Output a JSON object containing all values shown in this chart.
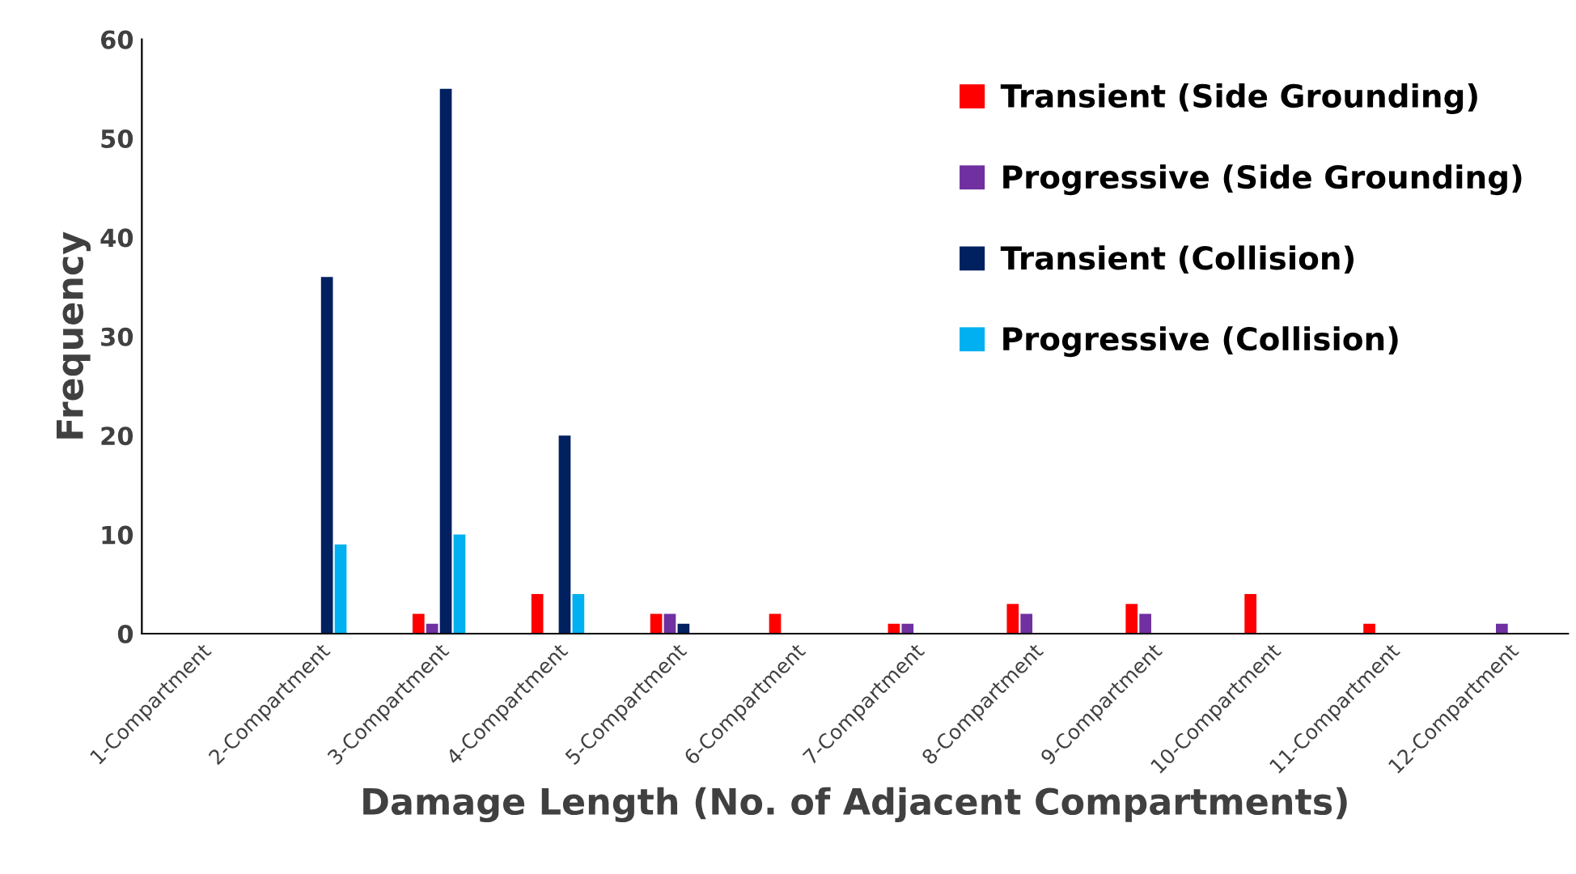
{
  "chart_data": {
    "type": "bar",
    "xlabel": "Damage Length (No. of Adjacent Compartments)",
    "ylabel": "Frequency",
    "categories": [
      "1-Compartment",
      "2-Compartment",
      "3-Compartment",
      "4-Compartment",
      "5-Compartment",
      "6-Compartment",
      "7-Compartment",
      "8-Compartment",
      "9-Compartment",
      "10-Compartment",
      "11-Compartment",
      "12-Compartment"
    ],
    "series": [
      {
        "name": "Transient (Side Grounding)",
        "color": "#ff0000",
        "values": [
          0,
          0,
          2,
          4,
          2,
          2,
          1,
          3,
          3,
          4,
          1,
          0
        ]
      },
      {
        "name": "Progressive (Side Grounding)",
        "color": "#7030a0",
        "values": [
          0,
          0,
          1,
          0,
          2,
          0,
          1,
          2,
          2,
          0,
          0,
          1
        ]
      },
      {
        "name": "Transient (Collision)",
        "color": "#002060",
        "values": [
          0,
          36,
          55,
          20,
          1,
          0,
          0,
          0,
          0,
          0,
          0,
          0
        ]
      },
      {
        "name": "Progressive (Collision)",
        "color": "#00b0f0",
        "values": [
          0,
          9,
          10,
          4,
          0,
          0,
          0,
          0,
          0,
          0,
          0,
          0
        ]
      }
    ],
    "ylim": [
      0,
      60
    ],
    "yticks": [
      0,
      10,
      20,
      30,
      40,
      50,
      60
    ],
    "grid": false,
    "legend": "top right"
  }
}
